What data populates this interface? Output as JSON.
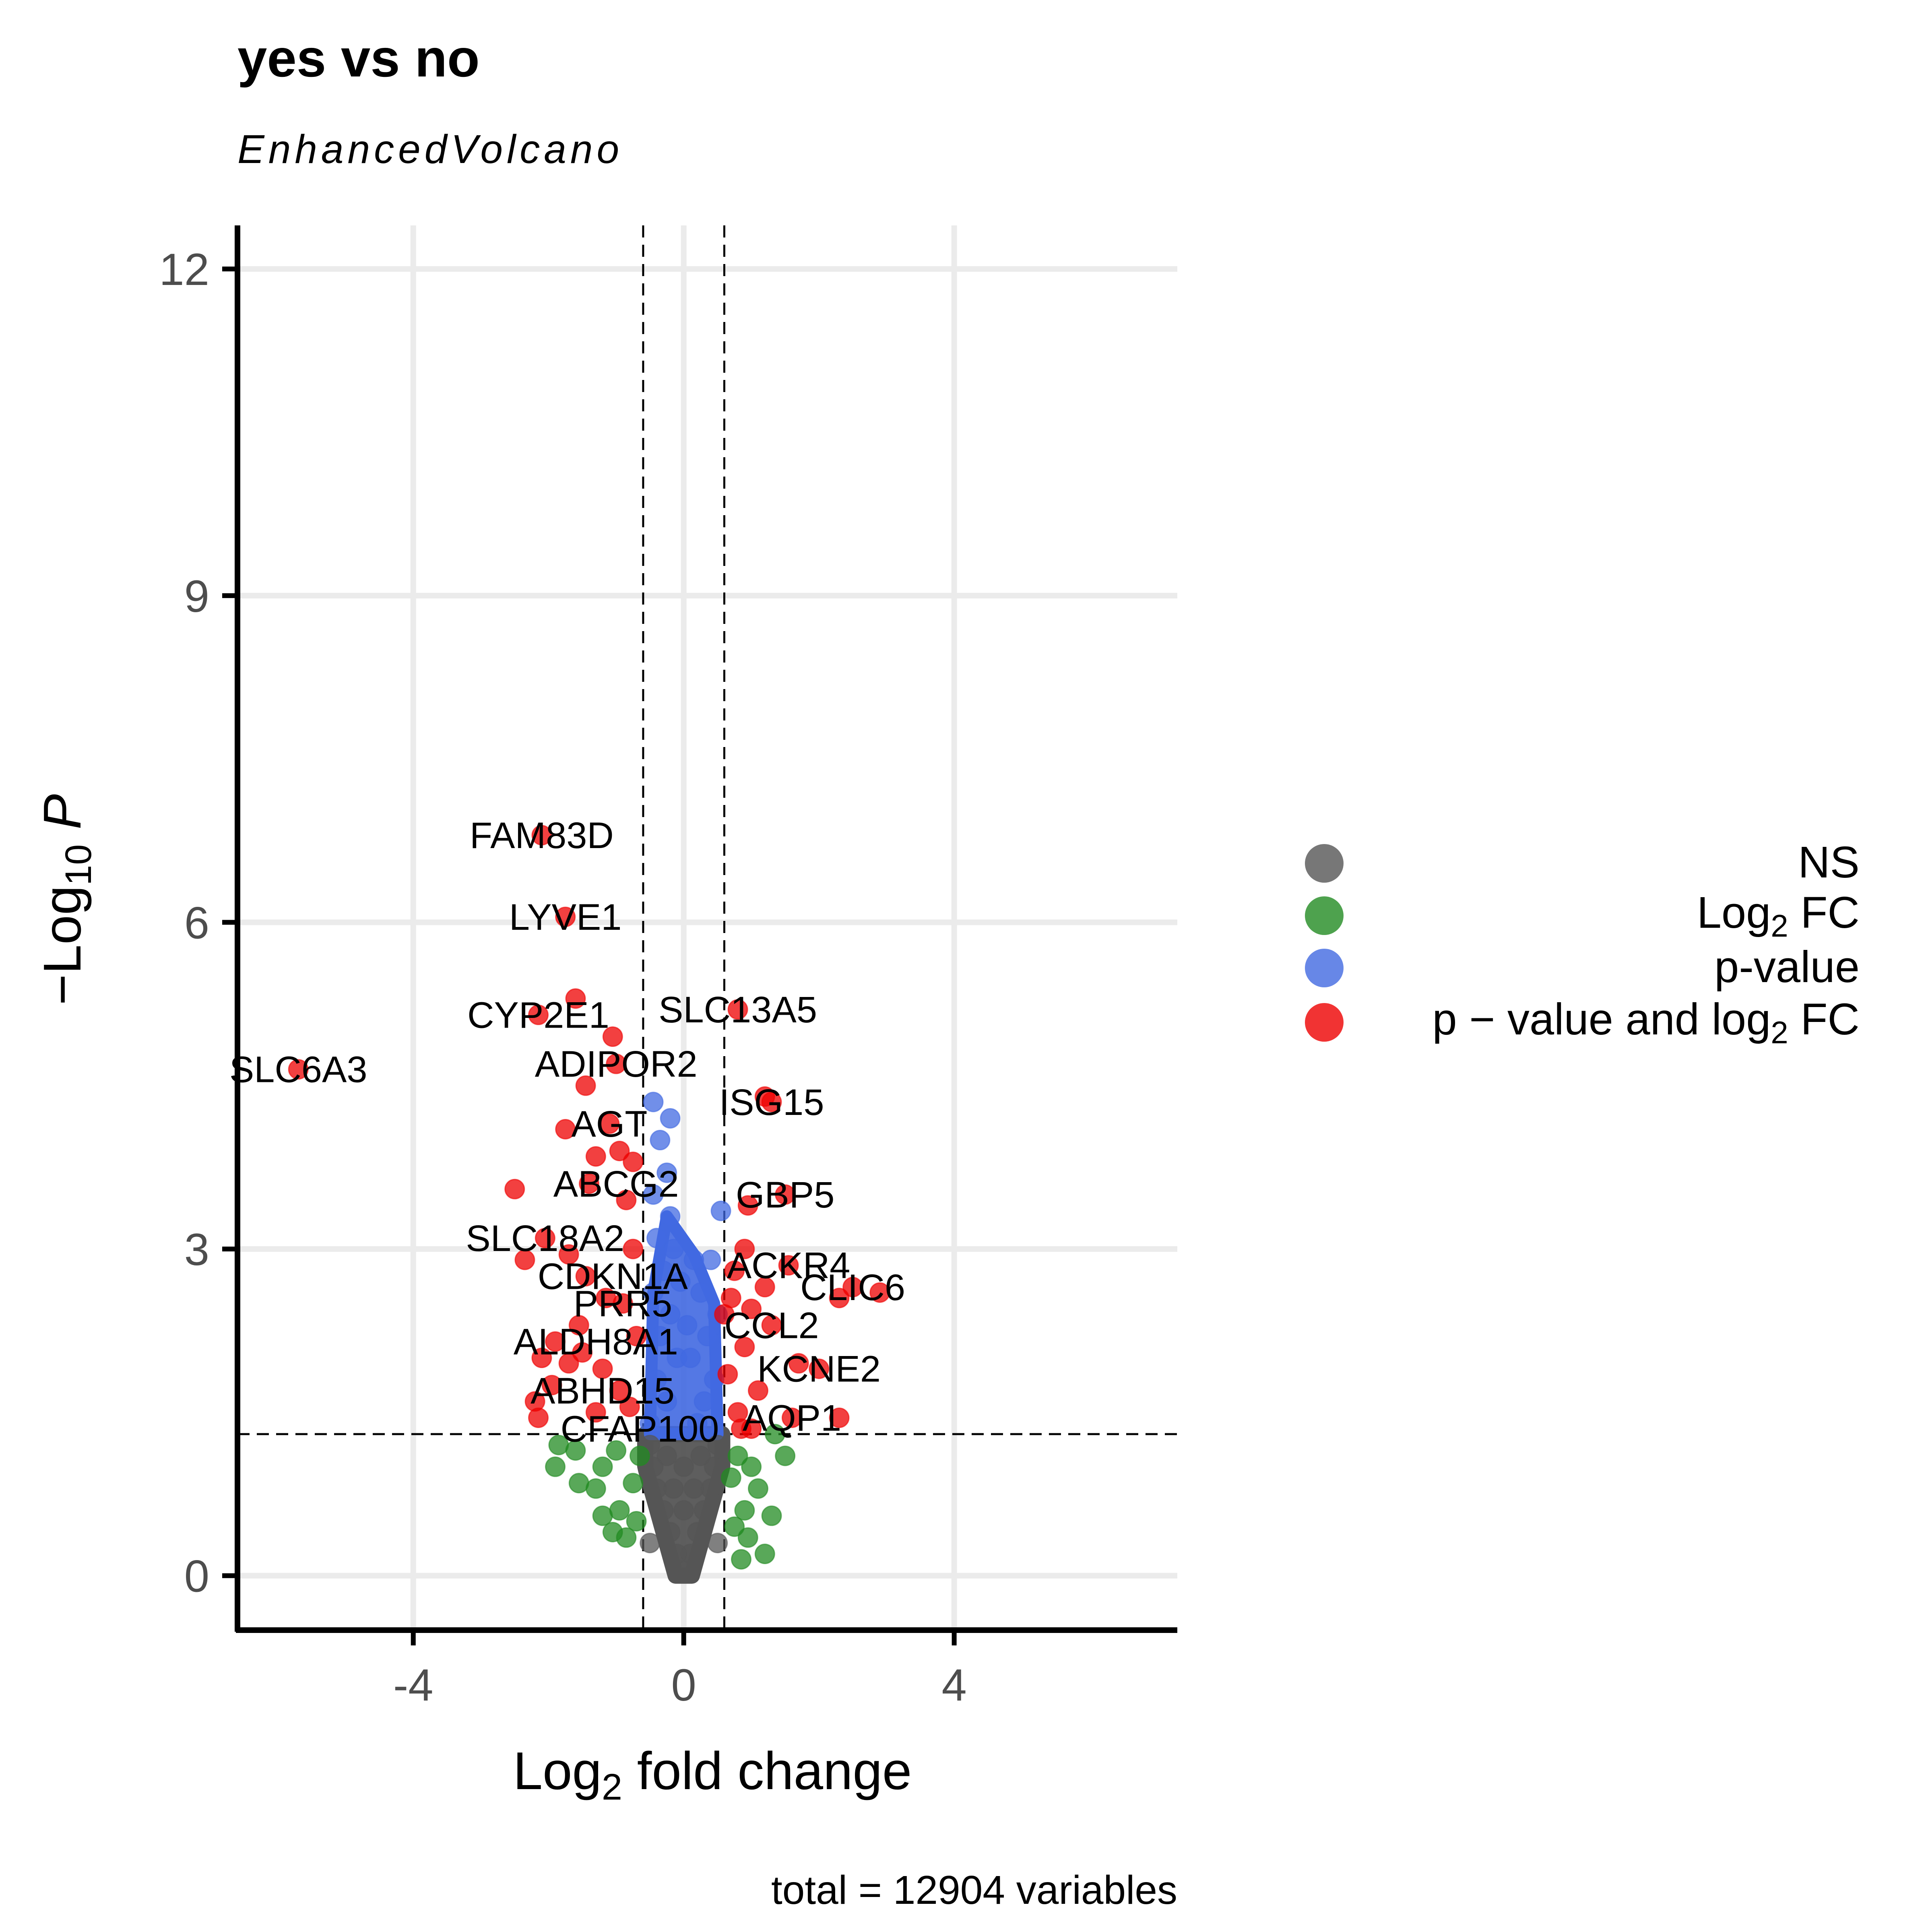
{
  "chart_data": {
    "type": "scatter",
    "title": "yes vs no",
    "subtitle": "EnhancedVolcano",
    "xlabel_main": "Log",
    "xlabel_sub": "2",
    "xlabel_rest": " fold change",
    "ylabel_prefix": "−Log",
    "ylabel_sub": "10",
    "ylabel_italic": "P",
    "caption": "total = 12904 variables",
    "xlim": [
      -6.6,
      7.3
    ],
    "ylim": [
      -0.5,
      12.4
    ],
    "x_ticks": [
      -4,
      0,
      4
    ],
    "x_tick_labels": [
      "-4",
      "0",
      "4"
    ],
    "y_ticks": [
      0,
      3,
      6,
      9,
      12
    ],
    "y_tick_labels": [
      "0",
      "3",
      "6",
      "9",
      "12"
    ],
    "grid": true,
    "fc_cutoff": 0.6,
    "p_cutoff": 1.3,
    "total_variables": 12904,
    "legend_position": "right",
    "legend": [
      {
        "key": "NS",
        "label": "NS",
        "color": "#555555"
      },
      {
        "key": "FC",
        "label_pre": "Log",
        "label_sub": "2",
        "label_post": " FC",
        "color": "#228b22"
      },
      {
        "key": "P",
        "label": "p-value",
        "color": "#4169e1"
      },
      {
        "key": "FC_P",
        "label_pre": "p − value and log",
        "label_sub": "2",
        "label_post": " FC",
        "color": "#ee0000"
      }
    ],
    "series": [
      {
        "key": "FC_P",
        "color": "#ee0000",
        "points": [
          [
            -5.7,
            4.65
          ],
          [
            -2.1,
            6.8
          ],
          [
            -1.75,
            6.05
          ],
          [
            -1.6,
            5.3
          ],
          [
            -2.15,
            5.15
          ],
          [
            -1.05,
            4.95
          ],
          [
            -1.0,
            4.7
          ],
          [
            -1.45,
            4.5
          ],
          [
            -1.75,
            4.1
          ],
          [
            -1.1,
            4.15
          ],
          [
            -1.3,
            3.85
          ],
          [
            -0.75,
            3.8
          ],
          [
            -2.5,
            3.55
          ],
          [
            -0.85,
            3.45
          ],
          [
            -1.4,
            3.6
          ],
          [
            -0.95,
            3.9
          ],
          [
            -2.05,
            3.1
          ],
          [
            -2.35,
            2.9
          ],
          [
            -1.7,
            2.95
          ],
          [
            -1.45,
            2.75
          ],
          [
            -1.15,
            2.55
          ],
          [
            -0.9,
            2.5
          ],
          [
            -1.9,
            2.15
          ],
          [
            -2.1,
            2.0
          ],
          [
            -1.5,
            2.05
          ],
          [
            -1.7,
            1.95
          ],
          [
            -1.2,
            1.9
          ],
          [
            -1.95,
            1.75
          ],
          [
            -2.2,
            1.6
          ],
          [
            -2.15,
            1.45
          ],
          [
            -1.3,
            1.5
          ],
          [
            -0.95,
            1.7
          ],
          [
            -0.7,
            2.2
          ],
          [
            -0.8,
            1.55
          ],
          [
            -1.55,
            2.3
          ],
          [
            -0.75,
            3.0
          ],
          [
            0.8,
            5.2
          ],
          [
            1.2,
            4.4
          ],
          [
            1.3,
            4.35
          ],
          [
            0.95,
            3.4
          ],
          [
            1.5,
            3.5
          ],
          [
            0.9,
            3.0
          ],
          [
            1.55,
            2.85
          ],
          [
            2.5,
            2.65
          ],
          [
            2.9,
            2.6
          ],
          [
            2.3,
            2.55
          ],
          [
            1.2,
            2.65
          ],
          [
            0.7,
            2.55
          ],
          [
            0.6,
            2.4
          ],
          [
            1.3,
            2.3
          ],
          [
            1.7,
            1.95
          ],
          [
            2.0,
            1.9
          ],
          [
            0.9,
            2.1
          ],
          [
            1.1,
            1.7
          ],
          [
            0.8,
            1.5
          ],
          [
            1.6,
            1.45
          ],
          [
            2.3,
            1.45
          ],
          [
            0.75,
            2.8
          ],
          [
            1.0,
            2.45
          ],
          [
            0.65,
            1.85
          ],
          [
            0.85,
            1.35
          ],
          [
            1.0,
            1.35
          ]
        ]
      },
      {
        "key": "P",
        "color": "#4169e1",
        "points": [
          [
            -0.45,
            4.35
          ],
          [
            -0.2,
            4.2
          ],
          [
            -0.35,
            4.0
          ],
          [
            -0.25,
            3.7
          ],
          [
            -0.45,
            3.5
          ],
          [
            -0.2,
            3.3
          ],
          [
            -0.4,
            3.1
          ],
          [
            -0.15,
            3.0
          ],
          [
            -0.3,
            2.8
          ],
          [
            -0.45,
            2.6
          ],
          [
            -0.2,
            2.4
          ],
          [
            -0.35,
            2.2
          ],
          [
            -0.1,
            2.0
          ],
          [
            -0.4,
            1.8
          ],
          [
            -0.25,
            1.6
          ],
          [
            -0.5,
            1.4
          ],
          [
            0.15,
            2.9
          ],
          [
            0.4,
            2.9
          ],
          [
            0.25,
            2.6
          ],
          [
            0.5,
            2.4
          ],
          [
            0.35,
            2.2
          ],
          [
            0.1,
            2.0
          ],
          [
            0.45,
            1.8
          ],
          [
            0.3,
            1.6
          ],
          [
            0.55,
            3.35
          ],
          [
            0.2,
            1.4
          ],
          [
            -0.05,
            2.7
          ],
          [
            0.05,
            2.3
          ]
        ]
      },
      {
        "key": "FC",
        "color": "#228b22",
        "points": [
          [
            -1.85,
            1.2
          ],
          [
            -1.6,
            1.15
          ],
          [
            -1.9,
            1.0
          ],
          [
            -1.55,
            0.85
          ],
          [
            -1.3,
            0.8
          ],
          [
            -1.2,
            0.55
          ],
          [
            -1.05,
            0.4
          ],
          [
            -0.95,
            0.6
          ],
          [
            -0.85,
            0.35
          ],
          [
            -0.75,
            0.85
          ],
          [
            -0.7,
            0.5
          ],
          [
            -1.0,
            1.15
          ],
          [
            -1.2,
            1.0
          ],
          [
            -0.65,
            1.1
          ],
          [
            1.5,
            1.1
          ],
          [
            1.35,
            1.3
          ],
          [
            0.8,
            1.1
          ],
          [
            1.1,
            0.8
          ],
          [
            0.9,
            0.6
          ],
          [
            1.3,
            0.55
          ],
          [
            0.95,
            0.35
          ],
          [
            0.75,
            0.45
          ],
          [
            0.7,
            0.9
          ],
          [
            1.2,
            0.2
          ],
          [
            0.85,
            0.15
          ],
          [
            1.0,
            1.0
          ]
        ]
      },
      {
        "key": "NS",
        "color": "#555555",
        "points": [
          [
            0,
            0.05
          ],
          [
            0.1,
            0.2
          ],
          [
            -0.1,
            0.2
          ],
          [
            0.2,
            0.4
          ],
          [
            -0.2,
            0.4
          ],
          [
            0.3,
            0.6
          ],
          [
            -0.3,
            0.6
          ],
          [
            0.4,
            0.8
          ],
          [
            -0.4,
            0.8
          ],
          [
            0.45,
            1.0
          ],
          [
            -0.45,
            1.0
          ],
          [
            0.5,
            1.2
          ],
          [
            -0.5,
            1.2
          ],
          [
            0.0,
            0.6
          ],
          [
            0.0,
            1.0
          ],
          [
            0.25,
            1.1
          ],
          [
            -0.25,
            1.1
          ],
          [
            0.5,
            0.3
          ],
          [
            -0.5,
            0.3
          ],
          [
            0.15,
            0.8
          ],
          [
            -0.15,
            0.8
          ]
        ]
      }
    ],
    "annotations": [
      {
        "text": "FAM83D",
        "x": -2.1,
        "y": 6.8
      },
      {
        "text": "LYVE1",
        "x": -1.75,
        "y": 6.05
      },
      {
        "text": "CYP2E1",
        "x": -2.15,
        "y": 5.15
      },
      {
        "text": "SLC13A5",
        "x": 0.8,
        "y": 5.2
      },
      {
        "text": "SLC6A3",
        "x": -5.7,
        "y": 4.65
      },
      {
        "text": "ADIPOR2",
        "x": -1.0,
        "y": 4.7
      },
      {
        "text": "ISG15",
        "x": 1.3,
        "y": 4.35
      },
      {
        "text": "AGT",
        "x": -1.1,
        "y": 4.15
      },
      {
        "text": "ABCG2",
        "x": -1.0,
        "y": 3.6
      },
      {
        "text": "GBP5",
        "x": 1.5,
        "y": 3.5
      },
      {
        "text": "SLC18A2",
        "x": -2.05,
        "y": 3.1
      },
      {
        "text": "ACKR4",
        "x": 1.55,
        "y": 2.85
      },
      {
        "text": "CDKN1A",
        "x": -1.05,
        "y": 2.75
      },
      {
        "text": "CLIC6",
        "x": 2.5,
        "y": 2.65
      },
      {
        "text": "PRR5",
        "x": -0.9,
        "y": 2.5
      },
      {
        "text": "CCL2",
        "x": 1.3,
        "y": 2.3
      },
      {
        "text": "ALDH8A1",
        "x": -1.3,
        "y": 2.15
      },
      {
        "text": "KCNE2",
        "x": 2.0,
        "y": 1.9
      },
      {
        "text": "ABHD15",
        "x": -1.2,
        "y": 1.7
      },
      {
        "text": "AQP1",
        "x": 1.6,
        "y": 1.45
      },
      {
        "text": "CFAP100",
        "x": -0.65,
        "y": 1.35
      }
    ]
  }
}
